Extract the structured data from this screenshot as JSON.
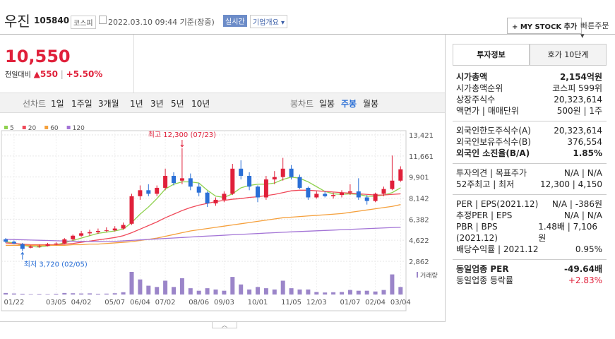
{
  "header": {
    "name": "우진",
    "code": "105840",
    "market": "코스피",
    "timestamp": "2022.03.10 09:44 기준(장중)",
    "realtime": "실시간",
    "company_overview": "기업개요",
    "my_stock": "+ MY STOCK 추가",
    "quick_order": "빠른주문"
  },
  "price": {
    "current": "10,550",
    "change_label": "전일대비",
    "change": "▲550",
    "change_pct": "+5.50%"
  },
  "line_tabs": {
    "label": "선차트",
    "items": [
      "1일",
      "1주일",
      "3개월",
      "1년",
      "3년",
      "5년",
      "10년"
    ]
  },
  "candle_tabs": {
    "label": "봉차트",
    "items": [
      "일봉",
      "주봉",
      "월봉"
    ],
    "selected": 1
  },
  "chart_data": {
    "type": "candlestick",
    "categories": [
      "",
      "01/22",
      null,
      null,
      null,
      null,
      "03/05",
      null,
      null,
      "04/02",
      null,
      null,
      null,
      "05/07",
      null,
      null,
      "06/04",
      null,
      null,
      "07/02",
      null,
      null,
      null,
      "08/06",
      null,
      null,
      "09/03",
      null,
      null,
      null,
      "10/01",
      null,
      null,
      null,
      "11/05",
      null,
      null,
      "12/03",
      null,
      null,
      null,
      "01/07",
      null,
      null,
      "02/04",
      null,
      null,
      "03/04"
    ],
    "candles": [
      [
        4700,
        4800,
        4400,
        4500
      ],
      [
        4500,
        4600,
        4300,
        4350
      ],
      [
        4300,
        4400,
        3720,
        3900
      ],
      [
        4000,
        4200,
        3950,
        4100
      ],
      [
        4100,
        4250,
        4000,
        4150
      ],
      [
        4150,
        4400,
        4100,
        4300
      ],
      [
        4300,
        4450,
        4200,
        4350
      ],
      [
        4350,
        4800,
        4300,
        4700
      ],
      [
        4700,
        5100,
        4600,
        5000
      ],
      [
        5000,
        5400,
        4900,
        5200
      ],
      [
        5200,
        5500,
        5000,
        5300
      ],
      [
        5300,
        5600,
        5150,
        5400
      ],
      [
        5400,
        5700,
        5300,
        5450
      ],
      [
        5450,
        5800,
        5350,
        5600
      ],
      [
        5600,
        6100,
        5500,
        5900
      ],
      [
        6000,
        8500,
        5900,
        8300
      ],
      [
        8300,
        9200,
        8000,
        8800
      ],
      [
        8800,
        9300,
        8300,
        8500
      ],
      [
        8500,
        9200,
        8300,
        9000
      ],
      [
        9000,
        10600,
        8800,
        10000
      ],
      [
        10000,
        10300,
        9200,
        9400
      ],
      [
        9600,
        12300,
        9300,
        9800
      ],
      [
        9800,
        10200,
        8800,
        9100
      ],
      [
        9100,
        9400,
        8300,
        8600
      ],
      [
        8600,
        8700,
        7400,
        7700
      ],
      [
        7700,
        8200,
        7500,
        8000
      ],
      [
        8000,
        8700,
        7800,
        8500
      ],
      [
        8500,
        11000,
        8400,
        10600
      ],
      [
        10600,
        11300,
        9700,
        10000
      ],
      [
        10000,
        10300,
        8800,
        9100
      ],
      [
        9100,
        9200,
        7800,
        8200
      ],
      [
        8200,
        10000,
        8000,
        9700
      ],
      [
        9700,
        10400,
        9300,
        9900
      ],
      [
        9900,
        11500,
        9600,
        10600
      ],
      [
        10600,
        10900,
        9700,
        9900
      ],
      [
        9900,
        10100,
        8900,
        9000
      ],
      [
        9000,
        9100,
        8000,
        8200
      ],
      [
        8200,
        8700,
        8100,
        8500
      ],
      [
        8500,
        8700,
        8200,
        8300
      ],
      [
        8300,
        8600,
        8100,
        8400
      ],
      [
        8400,
        8800,
        8200,
        8600
      ],
      [
        8600,
        9300,
        8400,
        8700
      ],
      [
        8700,
        9800,
        8000,
        8200
      ],
      [
        8200,
        8400,
        7600,
        7900
      ],
      [
        7900,
        8600,
        7800,
        8500
      ],
      [
        8500,
        9100,
        8300,
        8900
      ],
      [
        8900,
        11700,
        8800,
        9600
      ],
      [
        9600,
        10800,
        9500,
        10550
      ]
    ],
    "up_color": "#e0203a",
    "down_color": "#2a6fd6",
    "series": [
      {
        "name": "5",
        "color": "#8fd14f",
        "values": [
          4500,
          4400,
          4200,
          4100,
          4050,
          4150,
          4250,
          4400,
          4600,
          4800,
          5000,
          5200,
          5300,
          5400,
          5550,
          6100,
          6800,
          7400,
          8100,
          8900,
          9300,
          9500,
          9500,
          9400,
          8800,
          8300,
          8200,
          8500,
          9000,
          9200,
          9300,
          9300,
          9400,
          9700,
          9900,
          9800,
          9500,
          9100,
          8700,
          8500,
          8450,
          8500,
          8450,
          8300,
          8300,
          8400,
          8600,
          9000
        ]
      },
      {
        "name": "20",
        "color": "#f04a5a",
        "values": [
          4400,
          4350,
          4300,
          4250,
          4250,
          4250,
          4250,
          4300,
          4350,
          4450,
          4550,
          4650,
          4750,
          4850,
          5000,
          5250,
          5550,
          5850,
          6150,
          6500,
          6800,
          7100,
          7350,
          7550,
          7700,
          7850,
          7950,
          8050,
          8100,
          8200,
          8250,
          8350,
          8450,
          8600,
          8750,
          8800,
          8800,
          8750,
          8700,
          8650,
          8600,
          8550,
          8500,
          8450,
          8400,
          8400,
          8450,
          8500
        ]
      },
      {
        "name": "60",
        "color": "#f5a03c",
        "values": [
          4200,
          4200,
          4200,
          4200,
          4200,
          4200,
          4200,
          4200,
          4250,
          4250,
          4300,
          4300,
          4350,
          4400,
          4450,
          4500,
          4600,
          4700,
          4800,
          4950,
          5100,
          5250,
          5400,
          5500,
          5600,
          5700,
          5800,
          5900,
          6000,
          6100,
          6200,
          6300,
          6400,
          6500,
          6550,
          6600,
          6650,
          6700,
          6750,
          6800,
          6850,
          6950,
          7050,
          7150,
          7250,
          7350,
          7450,
          7600
        ]
      },
      {
        "name": "120",
        "color": "#a374d6",
        "values": [
          4700,
          4680,
          4660,
          4640,
          4620,
          4600,
          4580,
          4560,
          4540,
          4530,
          4520,
          4510,
          4500,
          4530,
          4570,
          4610,
          4650,
          4690,
          4730,
          4770,
          4810,
          4850,
          4890,
          4930,
          4970,
          5000,
          5040,
          5080,
          5110,
          5150,
          5180,
          5220,
          5250,
          5290,
          5320,
          5350,
          5380,
          5410,
          5440,
          5470,
          5500,
          5530,
          5560,
          5590,
          5620,
          5650,
          5680,
          5700
        ]
      }
    ],
    "volume": [
      60,
      40,
      30,
      20,
      25,
      20,
      30,
      60,
      50,
      40,
      45,
      30,
      35,
      50,
      90,
      900,
      600,
      350,
      300,
      550,
      300,
      650,
      250,
      150,
      250,
      200,
      150,
      700,
      400,
      200,
      300,
      250,
      200,
      550,
      250,
      200,
      200,
      100,
      80,
      90,
      100,
      180,
      150,
      150,
      120,
      180,
      800,
      300
    ],
    "volume_label": "거래량",
    "volume_color": "#9b85c9",
    "ylim": [
      2862,
      13421
    ],
    "yticks": [
      {
        "value": 2862,
        "label": "2,862"
      },
      {
        "value": 4622,
        "label": "4,622"
      },
      {
        "value": 6382,
        "label": "6,382"
      },
      {
        "value": 8142,
        "label": "8,142"
      },
      {
        "value": 9901,
        "label": "9,901"
      },
      {
        "value": 11661,
        "label": "11,661"
      },
      {
        "value": 13421,
        "label": "13,421"
      }
    ],
    "high_annotation": {
      "text": "최고 12,300 (07/23)",
      "index": 21
    },
    "low_annotation": {
      "text": "최저 3,720 (02/05)",
      "index": 2
    },
    "grid": true
  },
  "info_tabs": [
    "투자정보",
    "호가 10단계"
  ],
  "info_sections": [
    [
      {
        "label": "시가총액",
        "value": "2,154억원",
        "bold": true
      },
      {
        "label": "시가총액순위",
        "value": "코스피 599위"
      },
      {
        "label": "상장주식수",
        "value": "20,323,614"
      },
      {
        "label": "액면가 | 매매단위",
        "value": "500원 | 1주"
      }
    ],
    [
      {
        "label": "외국인한도주식수(A)",
        "value": "20,323,614"
      },
      {
        "label": "외국인보유주식수(B)",
        "value": "376,554"
      },
      {
        "label": "외국인 소진율(B/A)",
        "value": "1.85%",
        "bold": true
      }
    ],
    [
      {
        "label": "투자의견 | 목표주가",
        "value": "N/A | N/A"
      },
      {
        "label": "52주최고 | 최저",
        "value": "12,300 | 4,150"
      }
    ],
    [
      {
        "label": "PER | EPS(2021.12)",
        "value": "N/A | -386원"
      },
      {
        "label": "추정PER | EPS",
        "value": "N/A | N/A"
      },
      {
        "label": "PBR | BPS (2021.12)",
        "value": "1.48배 | 7,106원"
      },
      {
        "label": "배당수익률 | 2021.12",
        "value": "0.95%"
      }
    ],
    [
      {
        "label": "동일업종 PER",
        "value": "-49.64배",
        "bold": true
      },
      {
        "label": "동일업종 등락률",
        "value": "+2.83%",
        "red": true
      }
    ]
  ]
}
